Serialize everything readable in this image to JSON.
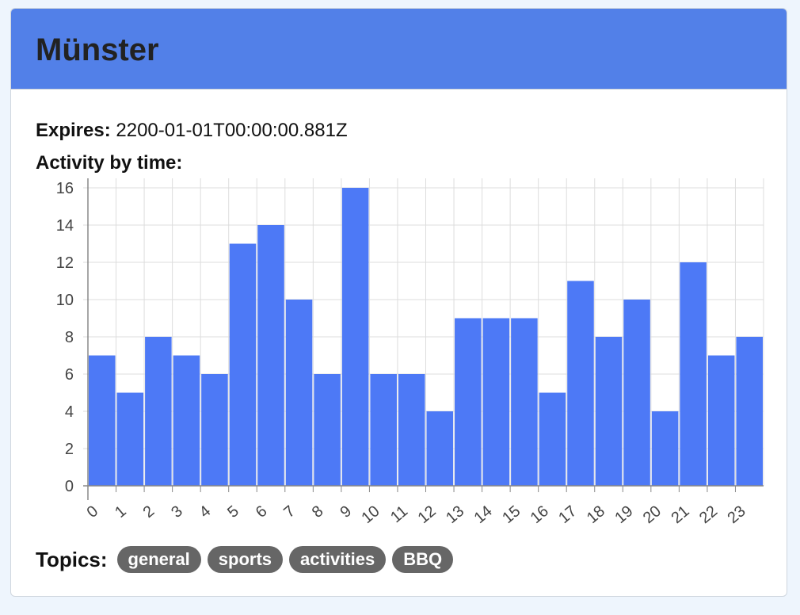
{
  "card": {
    "title": "Münster",
    "header_color": "#5280e8"
  },
  "expires": {
    "label": "Expires:",
    "value": "2200-01-01T00:00:00.881Z"
  },
  "activity": {
    "label": "Activity by time:"
  },
  "topics": {
    "label": "Topics:",
    "items": [
      "general",
      "sports",
      "activities",
      "BBQ"
    ]
  },
  "chart_data": {
    "type": "bar",
    "categories": [
      "0",
      "1",
      "2",
      "3",
      "4",
      "5",
      "6",
      "7",
      "8",
      "9",
      "10",
      "11",
      "12",
      "13",
      "14",
      "15",
      "16",
      "17",
      "18",
      "19",
      "20",
      "21",
      "22",
      "23"
    ],
    "values": [
      7,
      5,
      8,
      7,
      6,
      13,
      14,
      10,
      6,
      16,
      6,
      6,
      4,
      9,
      9,
      9,
      5,
      11,
      8,
      10,
      4,
      12,
      7,
      8
    ],
    "yticks": [
      0,
      2,
      4,
      6,
      8,
      10,
      12,
      14,
      16
    ],
    "ylim": [
      0,
      16
    ],
    "grid": true,
    "bar_color": "#4d79f6",
    "title": "",
    "xlabel": "",
    "ylabel": ""
  }
}
